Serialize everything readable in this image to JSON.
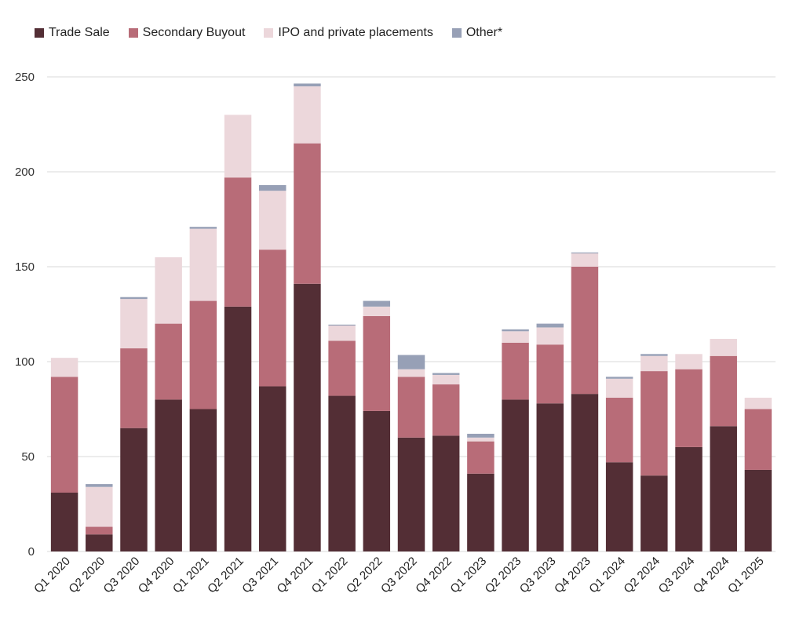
{
  "chart_data": {
    "type": "bar",
    "stacked": true,
    "title": "",
    "xlabel": "",
    "ylabel": "",
    "ylim": [
      0,
      250
    ],
    "yticks": [
      0,
      50,
      100,
      150,
      200,
      250
    ],
    "grid": true,
    "legend_position": "top-left",
    "categories": [
      "Q1 2020",
      "Q2 2020",
      "Q3 2020",
      "Q4 2020",
      "Q1 2021",
      "Q2 2021",
      "Q3 2021",
      "Q4 2021",
      "Q1 2022",
      "Q2 2022",
      "Q3 2022",
      "Q4 2022",
      "Q1 2023",
      "Q2 2023",
      "Q3 2023",
      "Q4 2023",
      "Q1 2024",
      "Q2 2024",
      "Q3 2024",
      "Q4 2024",
      "Q1 2025"
    ],
    "series": [
      {
        "name": "Trade Sale",
        "color": "#532e35",
        "values": [
          31,
          9,
          65,
          80,
          75,
          129,
          87,
          141,
          82,
          74,
          60,
          61,
          41,
          80,
          78,
          83,
          47,
          40,
          55,
          66,
          43
        ]
      },
      {
        "name": "Secondary Buyout",
        "color": "#b86c78",
        "values": [
          61,
          4,
          42,
          40,
          57,
          68,
          72,
          74,
          29,
          50,
          32,
          27,
          17,
          30,
          31,
          67,
          34,
          55,
          41,
          37,
          32
        ]
      },
      {
        "name": "IPO and private placements",
        "color": "#ecd7db",
        "values": [
          10,
          21,
          26,
          35,
          38,
          33,
          31,
          30,
          8,
          5,
          4,
          5,
          2,
          6,
          9,
          7,
          10,
          8,
          8,
          9,
          6
        ]
      },
      {
        "name": "Other*",
        "color": "#97a0b6",
        "values": [
          0,
          1.5,
          1,
          0,
          1,
          0,
          3,
          1.5,
          0.5,
          3,
          7.5,
          1,
          2,
          1,
          2,
          0.5,
          1,
          1,
          0,
          0,
          0
        ]
      }
    ]
  }
}
